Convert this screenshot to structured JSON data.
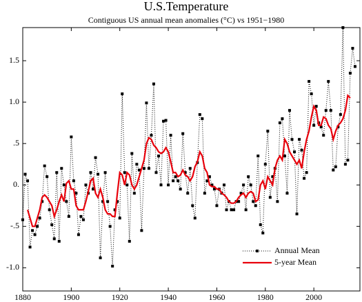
{
  "chart_data": {
    "type": "line",
    "title": "U.S.Temperature",
    "subtitle": "Contiguous US annual mean anomalies (°C) vs 1951−1980",
    "x": [
      1880,
      1881,
      1882,
      1883,
      1884,
      1885,
      1886,
      1887,
      1888,
      1889,
      1890,
      1891,
      1892,
      1893,
      1894,
      1895,
      1896,
      1897,
      1898,
      1899,
      1900,
      1901,
      1902,
      1903,
      1904,
      1905,
      1906,
      1907,
      1908,
      1909,
      1910,
      1911,
      1912,
      1913,
      1914,
      1915,
      1916,
      1917,
      1918,
      1919,
      1920,
      1921,
      1922,
      1923,
      1924,
      1925,
      1926,
      1927,
      1928,
      1929,
      1930,
      1931,
      1932,
      1933,
      1934,
      1935,
      1936,
      1937,
      1938,
      1939,
      1940,
      1941,
      1942,
      1943,
      1944,
      1945,
      1946,
      1947,
      1948,
      1949,
      1950,
      1951,
      1952,
      1953,
      1954,
      1955,
      1956,
      1957,
      1958,
      1959,
      1960,
      1961,
      1962,
      1963,
      1964,
      1965,
      1966,
      1967,
      1968,
      1969,
      1970,
      1971,
      1972,
      1973,
      1974,
      1975,
      1976,
      1977,
      1978,
      1979,
      1980,
      1981,
      1982,
      1983,
      1984,
      1985,
      1986,
      1987,
      1988,
      1989,
      1990,
      1991,
      1992,
      1993,
      1994,
      1995,
      1996,
      1997,
      1998,
      1999,
      2000,
      2001,
      2002,
      2003,
      2004,
      2005,
      2006,
      2007,
      2008,
      2009,
      2010,
      2011,
      2012,
      2013,
      2014,
      2015,
      2016,
      2017
    ],
    "series": [
      {
        "name": "Annual Mean",
        "color": "#000000",
        "style": "dotted-marker",
        "values": [
          -0.42,
          0.13,
          0.05,
          -0.75,
          -0.55,
          -0.6,
          -0.5,
          -0.4,
          -0.2,
          0.23,
          0.1,
          -0.3,
          -0.48,
          -0.65,
          0.15,
          -0.68,
          0.2,
          0.0,
          -0.2,
          -0.38,
          0.58,
          0.05,
          -0.1,
          -0.6,
          -0.38,
          -0.42,
          0.0,
          -0.1,
          0.15,
          -0.05,
          0.33,
          0.13,
          -0.88,
          -0.2,
          0.15,
          -0.2,
          -0.5,
          -0.98,
          -0.3,
          -0.2,
          -0.4,
          1.1,
          0.15,
          0.0,
          -0.68,
          0.38,
          -0.1,
          0.25,
          0.18,
          -0.55,
          0.2,
          0.99,
          0.2,
          0.6,
          1.22,
          0.15,
          0.35,
          0.0,
          0.77,
          0.78,
          0.0,
          0.6,
          0.05,
          0.1,
          0.05,
          -0.05,
          0.62,
          0.15,
          -0.1,
          0.2,
          -0.25,
          -0.4,
          0.27,
          0.85,
          0.8,
          -0.1,
          0.05,
          0.1,
          0.0,
          -0.05,
          -0.25,
          -0.05,
          -0.1,
          0.0,
          -0.3,
          -0.2,
          -0.3,
          -0.3,
          -0.2,
          -0.2,
          -0.1,
          0.0,
          -0.3,
          0.1,
          0.0,
          -0.2,
          -0.25,
          0.35,
          -0.48,
          -0.58,
          0.25,
          0.65,
          -0.15,
          0.1,
          0.2,
          -0.2,
          0.75,
          0.8,
          0.35,
          -0.1,
          0.9,
          0.55,
          0.4,
          -0.35,
          0.55,
          0.42,
          0.08,
          0.15,
          1.25,
          1.1,
          0.72,
          0.95,
          0.75,
          0.7,
          0.6,
          0.9,
          1.25,
          0.9,
          0.18,
          0.22,
          0.7,
          0.85,
          1.9,
          0.25,
          0.3,
          1.35,
          1.65,
          1.43
        ]
      },
      {
        "name": "5-year Mean",
        "color": "#e8000b",
        "style": "solid",
        "values": [
          null,
          null,
          -0.3,
          -0.4,
          -0.5,
          -0.5,
          -0.4,
          -0.3,
          -0.15,
          -0.12,
          -0.15,
          -0.2,
          -0.25,
          -0.38,
          -0.3,
          -0.2,
          -0.12,
          -0.2,
          0.02,
          0.05,
          -0.05,
          -0.05,
          -0.25,
          -0.3,
          -0.3,
          -0.3,
          -0.2,
          -0.08,
          0.05,
          0.08,
          -0.1,
          -0.15,
          -0.05,
          -0.15,
          -0.3,
          -0.35,
          -0.35,
          -0.38,
          -0.38,
          -0.1,
          0.15,
          0.12,
          0.0,
          0.15,
          0.12,
          0.0,
          -0.05,
          0.0,
          0.1,
          0.2,
          0.3,
          0.5,
          0.57,
          0.55,
          0.48,
          0.45,
          0.4,
          0.38,
          0.4,
          0.45,
          0.4,
          0.28,
          0.15,
          0.15,
          0.1,
          0.12,
          0.18,
          0.12,
          0.1,
          0.05,
          0.1,
          0.22,
          0.28,
          0.4,
          0.35,
          0.2,
          0.15,
          0.0,
          -0.02,
          -0.02,
          -0.05,
          -0.05,
          -0.1,
          -0.12,
          -0.15,
          -0.2,
          -0.22,
          -0.22,
          -0.2,
          -0.15,
          -0.12,
          -0.1,
          -0.15,
          -0.1,
          -0.08,
          -0.1,
          -0.2,
          -0.18,
          0.0,
          0.05,
          -0.05,
          0.1,
          0.05,
          0.0,
          0.2,
          0.3,
          0.35,
          0.3,
          0.55,
          0.5,
          0.4,
          0.35,
          0.3,
          0.25,
          0.3,
          0.2,
          0.4,
          0.55,
          0.65,
          0.82,
          0.95,
          0.9,
          0.72,
          0.72,
          0.82,
          0.8,
          0.72,
          0.68,
          0.55,
          0.65,
          0.72,
          0.75,
          0.8,
          0.9,
          1.08,
          1.05,
          null,
          null
        ]
      }
    ],
    "xlim": [
      1880,
      2019
    ],
    "xticks": [
      1880,
      1900,
      1920,
      1940,
      1960,
      1980,
      2000
    ],
    "ylim": [
      -1.28,
      1.9
    ],
    "yticks": [
      {
        "value": -1.0,
        "label": "-1.0"
      },
      {
        "value": -0.5,
        "label": "-.5"
      },
      {
        "value": 0,
        "label": "0."
      },
      {
        "value": 0.5,
        "label": ".5"
      },
      {
        "value": 1.0,
        "label": "1.0"
      },
      1.5
    ],
    "legend": "lower right"
  }
}
